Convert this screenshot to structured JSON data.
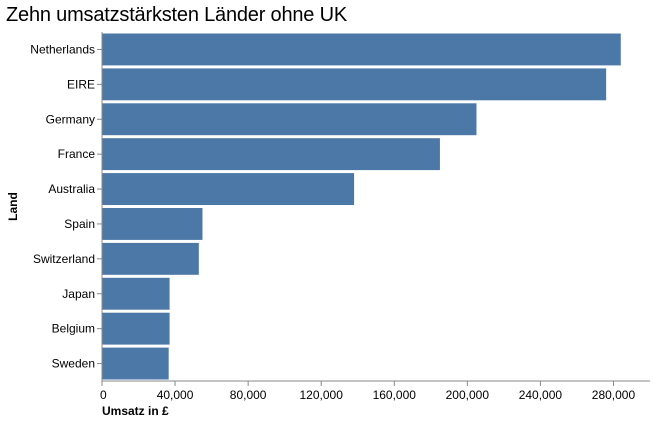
{
  "chart_data": {
    "type": "bar",
    "orientation": "horizontal",
    "title": "Zehn umsatzstärksten Länder ohne UK",
    "xlabel": "Umsatz in £",
    "ylabel": "Land",
    "categories": [
      "Netherlands",
      "EIRE",
      "Germany",
      "France",
      "Australia",
      "Spain",
      "Switzerland",
      "Japan",
      "Belgium",
      "Sweden"
    ],
    "values": [
      284000,
      276000,
      205000,
      185000,
      138000,
      55000,
      53000,
      37000,
      37000,
      36500
    ],
    "xlim": [
      0,
      300000
    ],
    "xticks": [
      0,
      40000,
      80000,
      120000,
      160000,
      200000,
      240000,
      280000
    ],
    "xtick_labels": [
      "0",
      "40,000",
      "80,000",
      "120,000",
      "160,000",
      "200,000",
      "240,000",
      "280,000"
    ],
    "bar_color": "#4c78a8",
    "grid": false,
    "legend": "none"
  }
}
